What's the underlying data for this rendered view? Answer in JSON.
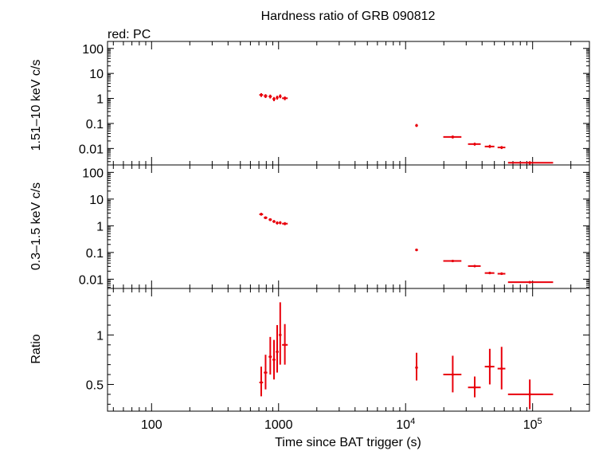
{
  "chart_data": {
    "type": "scatter",
    "title": "Hardness ratio of GRB 090812",
    "legend_note": "red: PC",
    "xlabel": "Time since BAT trigger (s)",
    "x_scale": "log",
    "xlim": [
      45,
      280000
    ],
    "x_ticks": [
      {
        "value": 100,
        "label": "100"
      },
      {
        "value": 1000,
        "label": "1000"
      },
      {
        "value": 10000,
        "label": "10",
        "sup": "4"
      },
      {
        "value": 100000,
        "label": "10",
        "sup": "5"
      }
    ],
    "point_color": "#e8000b",
    "panels": [
      {
        "id": "hard",
        "ylabel": "1.51–10 keV c/s",
        "y_scale": "log",
        "ylim": [
          0.0022,
          190
        ],
        "y_ticks": [
          {
            "value": 100,
            "label": "100"
          },
          {
            "value": 10,
            "label": "10"
          },
          {
            "value": 1,
            "label": "1"
          },
          {
            "value": 0.1,
            "label": "0.1"
          },
          {
            "value": 0.01,
            "label": "0.01"
          }
        ],
        "points": [
          {
            "x": 730,
            "xlo": 705,
            "xhi": 755,
            "y": 1.38,
            "ylo": 1.15,
            "yhi": 1.62
          },
          {
            "x": 790,
            "xlo": 765,
            "xhi": 815,
            "y": 1.25,
            "ylo": 1.04,
            "yhi": 1.48
          },
          {
            "x": 860,
            "xlo": 835,
            "xhi": 885,
            "y": 1.2,
            "ylo": 1.0,
            "yhi": 1.42
          },
          {
            "x": 920,
            "xlo": 895,
            "xhi": 945,
            "y": 0.95,
            "ylo": 0.78,
            "yhi": 1.14
          },
          {
            "x": 975,
            "xlo": 950,
            "xhi": 1000,
            "y": 1.08,
            "ylo": 0.9,
            "yhi": 1.28
          },
          {
            "x": 1030,
            "xlo": 1005,
            "xhi": 1055,
            "y": 1.22,
            "ylo": 1.02,
            "yhi": 1.45
          },
          {
            "x": 1120,
            "xlo": 1065,
            "xhi": 1180,
            "y": 1.02,
            "ylo": 0.85,
            "yhi": 1.2
          },
          {
            "x": 12200,
            "xlo": 11900,
            "xhi": 12500,
            "y": 0.083,
            "ylo": 0.073,
            "yhi": 0.095
          },
          {
            "x": 23500,
            "xlo": 19800,
            "xhi": 27500,
            "y": 0.029,
            "ylo": 0.025,
            "yhi": 0.033
          },
          {
            "x": 35000,
            "xlo": 31000,
            "xhi": 39000,
            "y": 0.015,
            "ylo": 0.013,
            "yhi": 0.017
          },
          {
            "x": 46000,
            "xlo": 42000,
            "xhi": 50000,
            "y": 0.012,
            "ylo": 0.0105,
            "yhi": 0.014
          },
          {
            "x": 57000,
            "xlo": 53000,
            "xhi": 61000,
            "y": 0.011,
            "ylo": 0.0095,
            "yhi": 0.0125
          },
          {
            "x": 95000,
            "xlo": 64000,
            "xhi": 145000,
            "y": 0.0027,
            "ylo": 0.0023,
            "yhi": 0.0031
          }
        ]
      },
      {
        "id": "soft",
        "ylabel": "0.3–1.5 keV c/s",
        "y_scale": "log",
        "ylim": [
          0.0045,
          190
        ],
        "y_ticks": [
          {
            "value": 100,
            "label": "100"
          },
          {
            "value": 10,
            "label": "10"
          },
          {
            "value": 1,
            "label": "1"
          },
          {
            "value": 0.1,
            "label": "0.1"
          },
          {
            "value": 0.01,
            "label": "0.01"
          }
        ],
        "points": [
          {
            "x": 730,
            "xlo": 705,
            "xhi": 755,
            "y": 2.7,
            "ylo": 2.4,
            "yhi": 3.05
          },
          {
            "x": 790,
            "xlo": 765,
            "xhi": 815,
            "y": 2.0,
            "ylo": 1.78,
            "yhi": 2.25
          },
          {
            "x": 860,
            "xlo": 835,
            "xhi": 885,
            "y": 1.7,
            "ylo": 1.5,
            "yhi": 1.92
          },
          {
            "x": 920,
            "xlo": 895,
            "xhi": 945,
            "y": 1.45,
            "ylo": 1.28,
            "yhi": 1.64
          },
          {
            "x": 975,
            "xlo": 950,
            "xhi": 1000,
            "y": 1.28,
            "ylo": 1.12,
            "yhi": 1.46
          },
          {
            "x": 1030,
            "xlo": 1005,
            "xhi": 1055,
            "y": 1.3,
            "ylo": 1.14,
            "yhi": 1.48
          },
          {
            "x": 1120,
            "xlo": 1065,
            "xhi": 1180,
            "y": 1.2,
            "ylo": 1.05,
            "yhi": 1.37
          },
          {
            "x": 12200,
            "xlo": 11900,
            "xhi": 12500,
            "y": 0.125,
            "ylo": 0.113,
            "yhi": 0.138
          },
          {
            "x": 23500,
            "xlo": 19800,
            "xhi": 27500,
            "y": 0.048,
            "ylo": 0.044,
            "yhi": 0.053
          },
          {
            "x": 35000,
            "xlo": 31000,
            "xhi": 39000,
            "y": 0.031,
            "ylo": 0.028,
            "yhi": 0.034
          },
          {
            "x": 46000,
            "xlo": 42000,
            "xhi": 50000,
            "y": 0.017,
            "ylo": 0.0155,
            "yhi": 0.019
          },
          {
            "x": 57000,
            "xlo": 53000,
            "xhi": 61000,
            "y": 0.016,
            "ylo": 0.0145,
            "yhi": 0.018
          },
          {
            "x": 95000,
            "xlo": 64000,
            "xhi": 145000,
            "y": 0.0077,
            "ylo": 0.007,
            "yhi": 0.0085
          }
        ]
      },
      {
        "id": "ratio",
        "ylabel": "Ratio",
        "y_scale": "linear",
        "ylim": [
          0.23,
          1.47
        ],
        "y_ticks": [
          {
            "value": 1,
            "label": "1"
          },
          {
            "value": 0.5,
            "label": "0.5"
          }
        ],
        "points": [
          {
            "x": 730,
            "xlo": 705,
            "xhi": 755,
            "y": 0.52,
            "ylo": 0.38,
            "yhi": 0.68
          },
          {
            "x": 790,
            "xlo": 765,
            "xhi": 815,
            "y": 0.62,
            "ylo": 0.45,
            "yhi": 0.8
          },
          {
            "x": 860,
            "xlo": 835,
            "xhi": 885,
            "y": 0.78,
            "ylo": 0.6,
            "yhi": 0.98
          },
          {
            "x": 920,
            "xlo": 895,
            "xhi": 945,
            "y": 0.75,
            "ylo": 0.55,
            "yhi": 0.95
          },
          {
            "x": 975,
            "xlo": 950,
            "xhi": 1000,
            "y": 0.83,
            "ylo": 0.62,
            "yhi": 1.1
          },
          {
            "x": 1030,
            "xlo": 1005,
            "xhi": 1055,
            "y": 1.0,
            "ylo": 0.7,
            "yhi": 1.33
          },
          {
            "x": 1120,
            "xlo": 1065,
            "xhi": 1180,
            "y": 0.9,
            "ylo": 0.7,
            "yhi": 1.11
          },
          {
            "x": 12200,
            "xlo": 11900,
            "xhi": 12500,
            "y": 0.67,
            "ylo": 0.54,
            "yhi": 0.82
          },
          {
            "x": 23500,
            "xlo": 19800,
            "xhi": 27500,
            "y": 0.6,
            "ylo": 0.42,
            "yhi": 0.79
          },
          {
            "x": 35000,
            "xlo": 31000,
            "xhi": 39000,
            "y": 0.47,
            "ylo": 0.37,
            "yhi": 0.58
          },
          {
            "x": 46000,
            "xlo": 42000,
            "xhi": 50000,
            "y": 0.68,
            "ylo": 0.5,
            "yhi": 0.86
          },
          {
            "x": 57000,
            "xlo": 53000,
            "xhi": 61000,
            "y": 0.66,
            "ylo": 0.45,
            "yhi": 0.88
          },
          {
            "x": 95000,
            "xlo": 64000,
            "xhi": 145000,
            "y": 0.4,
            "ylo": 0.25,
            "yhi": 0.55
          }
        ]
      }
    ]
  }
}
